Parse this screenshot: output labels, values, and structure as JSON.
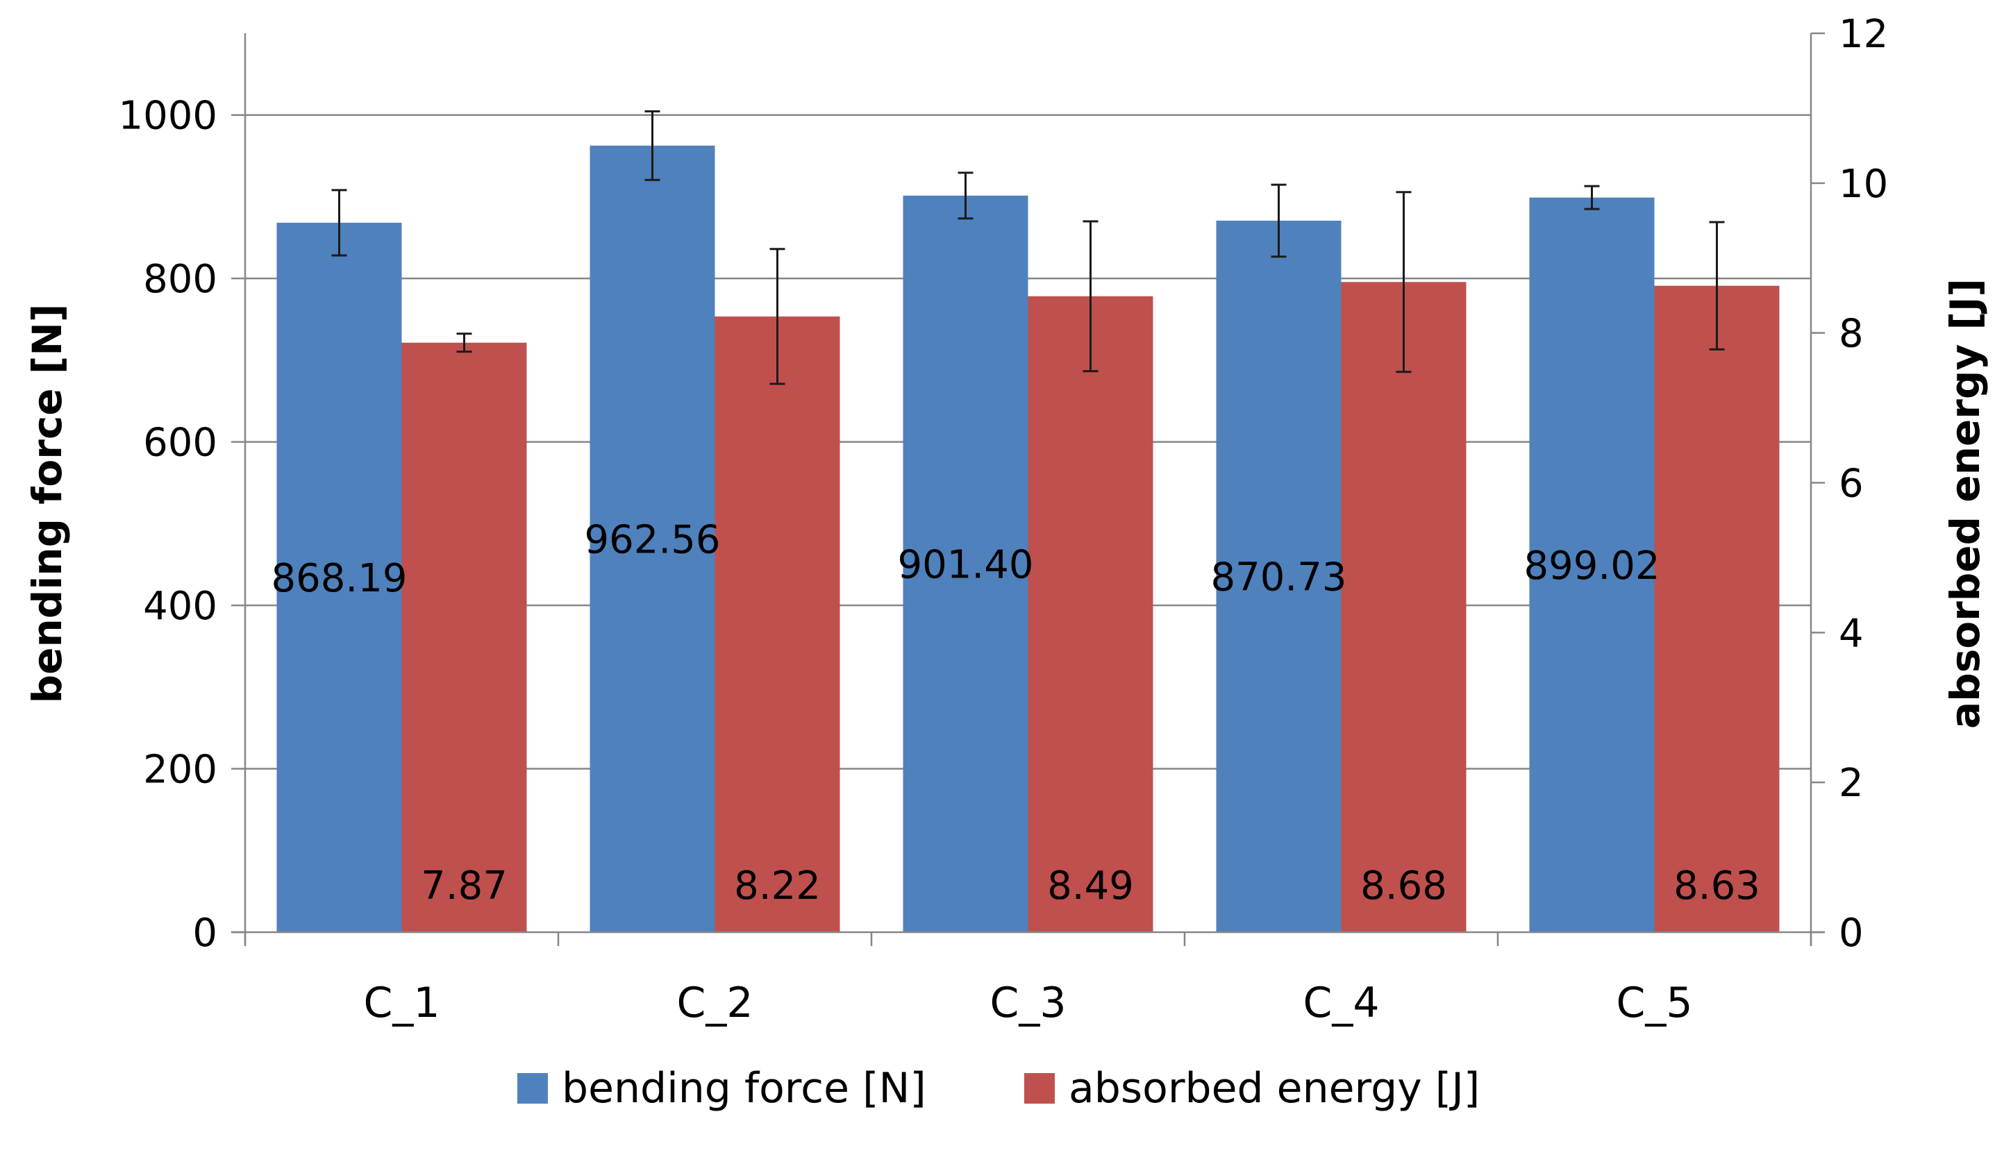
{
  "chart_data": {
    "type": "bar",
    "categories": [
      "C_1",
      "C_2",
      "C_3",
      "C_4",
      "C_5"
    ],
    "series": [
      {
        "name": "bending force [N]",
        "axis": "left",
        "color": "#4F81BD",
        "values": [
          868.19,
          962.56,
          901.4,
          870.73,
          899.02
        ],
        "labels": [
          "868.19",
          "962.56",
          "901.40",
          "870.73",
          "899.02"
        ],
        "error": [
          40,
          42,
          28,
          44,
          14
        ]
      },
      {
        "name": "absorbed energy [J]",
        "axis": "right",
        "color": "#C0504D",
        "values": [
          7.87,
          8.22,
          8.49,
          8.68,
          8.63
        ],
        "labels": [
          "7.87",
          "8.22",
          "8.49",
          "8.68",
          "8.63"
        ],
        "error": [
          0.12,
          0.9,
          1.0,
          1.2,
          0.85
        ]
      }
    ],
    "ylabel": "bending force [N]",
    "y2label": "absorbed energy [J]",
    "ylim": [
      0,
      1100
    ],
    "y2lim": [
      0,
      12
    ],
    "yticks": [
      0,
      200,
      400,
      600,
      800,
      1000
    ],
    "y2ticks": [
      0,
      2,
      4,
      6,
      8,
      10,
      12
    ],
    "grid": true,
    "legend": "bottom"
  }
}
